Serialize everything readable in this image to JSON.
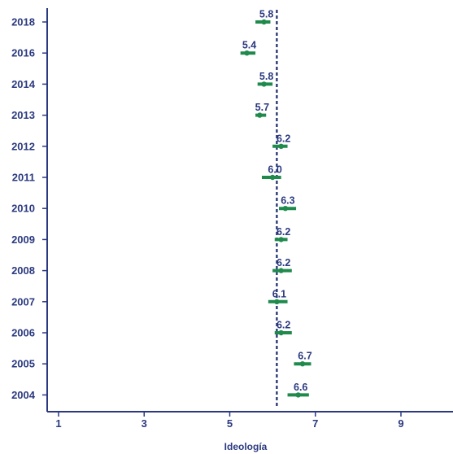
{
  "chart_data": {
    "type": "scatter",
    "title": "",
    "xlabel": "Ideología",
    "ylabel": "",
    "xlim": [
      1,
      10
    ],
    "x_ticks": [
      1,
      3,
      5,
      7,
      9
    ],
    "reference_line_x": 6.1,
    "grid": false,
    "legend": "none",
    "points": [
      {
        "year": "2018",
        "value": 5.8,
        "ci": [
          5.6,
          5.95
        ],
        "label": "5.8"
      },
      {
        "year": "2016",
        "value": 5.4,
        "ci": [
          5.25,
          5.6
        ],
        "label": "5.4"
      },
      {
        "year": "2014",
        "value": 5.8,
        "ci": [
          5.65,
          6.0
        ],
        "label": "5.8"
      },
      {
        "year": "2013",
        "value": 5.7,
        "ci": [
          5.6,
          5.85
        ],
        "label": "5.7"
      },
      {
        "year": "2012",
        "value": 6.2,
        "ci": [
          6.0,
          6.35
        ],
        "label": "6.2"
      },
      {
        "year": "2011",
        "value": 6.0,
        "ci": [
          5.75,
          6.2
        ],
        "label": "6.0"
      },
      {
        "year": "2010",
        "value": 6.3,
        "ci": [
          6.15,
          6.55
        ],
        "label": "6.3"
      },
      {
        "year": "2009",
        "value": 6.2,
        "ci": [
          6.05,
          6.35
        ],
        "label": "6.2"
      },
      {
        "year": "2008",
        "value": 6.2,
        "ci": [
          6.0,
          6.45
        ],
        "label": "6.2"
      },
      {
        "year": "2007",
        "value": 6.1,
        "ci": [
          5.9,
          6.35
        ],
        "label": "6.1"
      },
      {
        "year": "2006",
        "value": 6.2,
        "ci": [
          6.05,
          6.45
        ],
        "label": "6.2"
      },
      {
        "year": "2005",
        "value": 6.7,
        "ci": [
          6.5,
          6.9
        ],
        "label": "6.7"
      },
      {
        "year": "2004",
        "value": 6.6,
        "ci": [
          6.35,
          6.85
        ],
        "label": "6.6"
      }
    ]
  },
  "colors": {
    "axis": "#2b3a80",
    "text": "#2b3a80",
    "marker": "#1f8a4c",
    "reference_line": "#1b2a6b"
  }
}
